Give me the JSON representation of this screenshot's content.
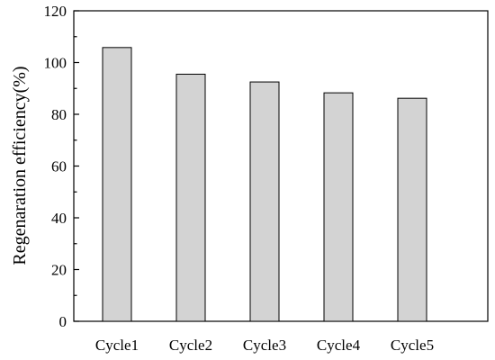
{
  "chart_data": {
    "type": "bar",
    "title": "",
    "xlabel": "",
    "ylabel": "Regenaration efficiency(%)",
    "categories": [
      "Cycle1",
      "Cycle2",
      "Cycle3",
      "Cycle4",
      "Cycle5"
    ],
    "values": [
      105.8,
      95.5,
      92.5,
      88.3,
      86.2
    ],
    "ylim": [
      0,
      120
    ],
    "yticks": [
      0,
      20,
      40,
      60,
      80,
      100,
      120
    ],
    "yticklabels": [
      "0",
      "20",
      "40",
      "60",
      "80",
      "100",
      "120"
    ],
    "grid": false,
    "legend": "none",
    "bar_color": "#d3d3d3",
    "edge_color": "#000000"
  }
}
